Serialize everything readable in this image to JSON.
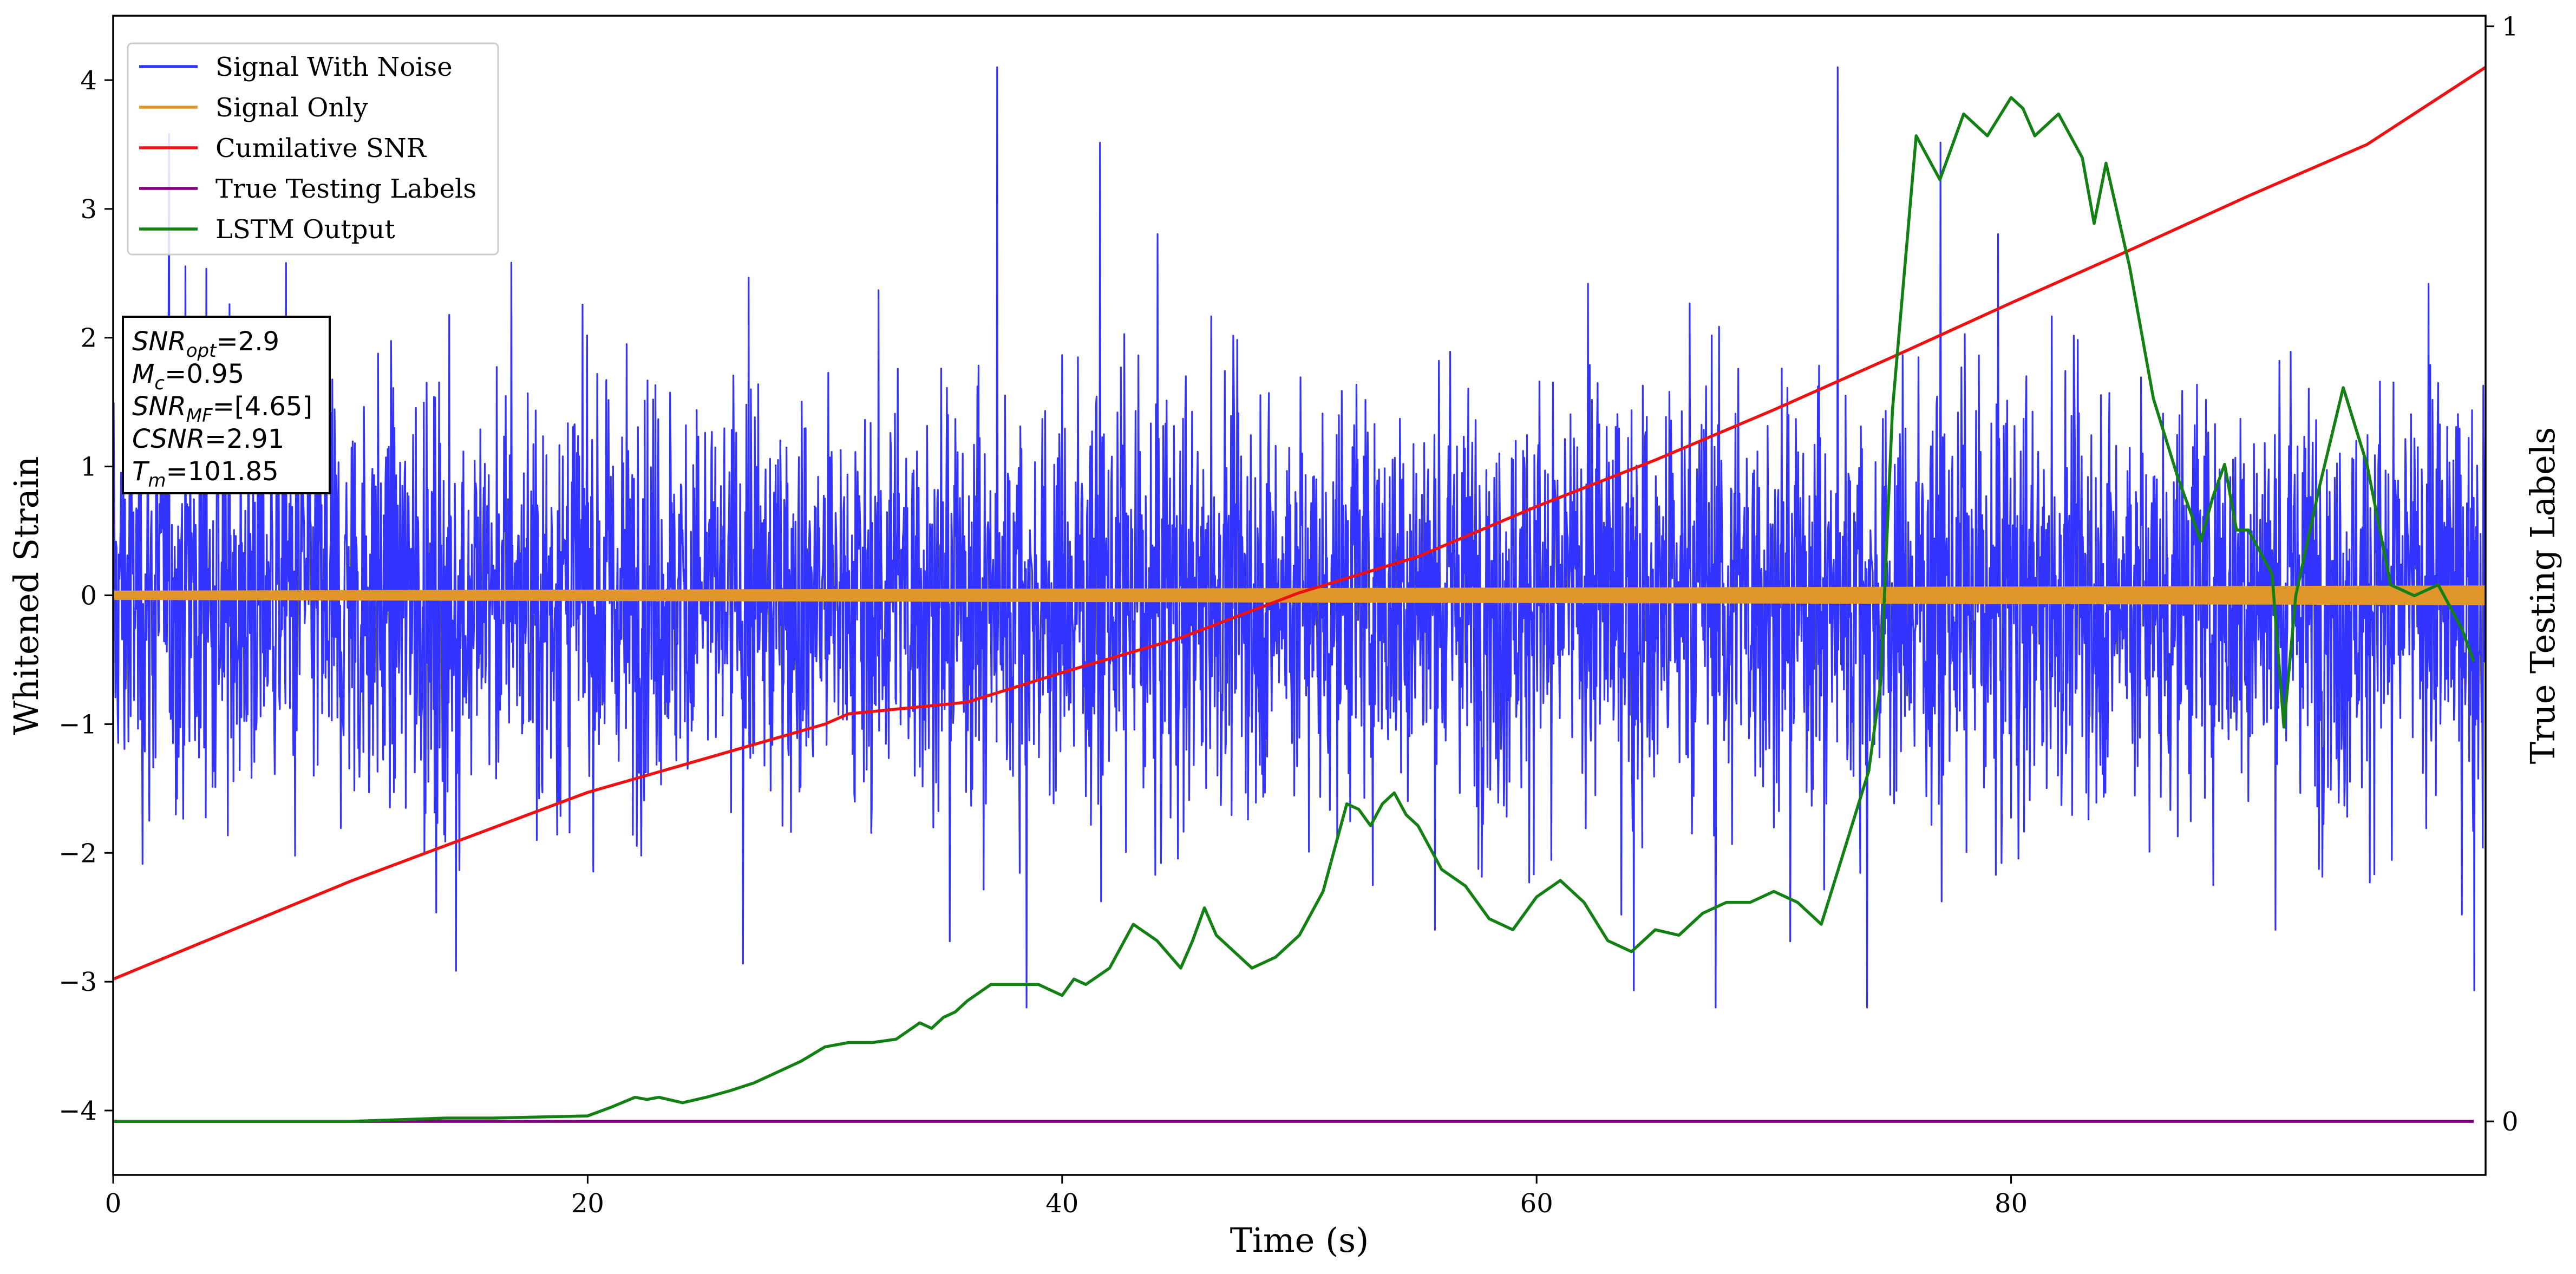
{
  "colors": {
    "noise": "#3333ff",
    "signal": "#e0962a",
    "csnr": "#ee1111",
    "labels": "#800080",
    "lstm": "#138013"
  },
  "chart_data": {
    "type": "line",
    "xlabel": "Time (s)",
    "ylabel": "Whitened Strain",
    "y2label": "True Testing Labels",
    "xlim": [
      0,
      100
    ],
    "ylim": [
      -4.5,
      4.5
    ],
    "y2lim": [
      -0.0489,
      1.0097
    ],
    "xticks": [
      0,
      20,
      40,
      60,
      80
    ],
    "xtick_labels": [
      "0",
      "20",
      "40",
      "60",
      "80"
    ],
    "yticks": [
      -4,
      -3,
      -2,
      -1,
      0,
      1,
      2,
      3,
      4
    ],
    "ytick_labels": [
      "−4",
      "−3",
      "−2",
      "−1",
      "0",
      "1",
      "2",
      "3",
      "4"
    ],
    "y2ticks": [
      0,
      1
    ],
    "y2tick_labels": [
      "0",
      "1"
    ],
    "grid": false,
    "legend_position": "top-left",
    "series": [
      {
        "name": "Signal With Noise",
        "axis": "y1",
        "style": "noise",
        "amplitude_range": [
          -3.2,
          4.1
        ]
      },
      {
        "name": "Signal Only",
        "axis": "y1",
        "style": "band",
        "amplitude": [
          0.03,
          0.07
        ]
      },
      {
        "name": "Cumilative SNR",
        "axis": "y1",
        "x": [
          0,
          10,
          20,
          30,
          31,
          36,
          40,
          45,
          50,
          55,
          60,
          65,
          70,
          75,
          80,
          85,
          90,
          95,
          100
        ],
        "y": [
          -2.98,
          -2.22,
          -1.53,
          -1.0,
          -0.92,
          -0.83,
          -0.6,
          -0.33,
          0.02,
          0.3,
          0.69,
          1.05,
          1.44,
          1.85,
          2.27,
          2.68,
          3.1,
          3.5,
          4.1
        ]
      },
      {
        "name": "True Testing Labels",
        "axis": "y2",
        "x": [
          0,
          99.5
        ],
        "y": [
          0,
          0
        ]
      },
      {
        "name": "LSTM Output",
        "axis": "y2",
        "x": [
          0,
          10,
          14,
          16,
          18,
          20,
          21,
          22,
          22.5,
          23,
          24,
          25,
          26,
          27,
          28,
          29,
          30,
          31,
          32,
          33,
          34,
          34.5,
          35,
          35.5,
          36,
          37,
          38,
          39,
          40,
          40.5,
          41,
          42,
          43,
          44,
          45,
          45.5,
          46,
          46.5,
          47,
          48,
          49,
          50,
          51,
          52,
          52.5,
          53,
          53.5,
          54,
          54.5,
          55,
          56,
          57,
          58,
          59,
          60,
          61,
          62,
          63,
          64,
          65,
          66,
          67,
          68,
          69,
          70,
          71,
          72,
          73,
          74,
          74.5,
          75,
          76,
          77,
          78,
          79,
          80,
          80.5,
          81,
          82,
          83,
          83.5,
          84,
          85,
          86,
          87,
          88,
          88.5,
          89,
          89.5,
          90,
          91,
          91.5,
          92,
          93,
          94,
          95,
          96,
          97,
          98,
          99,
          99.5
        ],
        "y": [
          0.0,
          0.0,
          0.003,
          0.003,
          0.004,
          0.005,
          0.013,
          0.022,
          0.02,
          0.022,
          0.017,
          0.022,
          0.028,
          0.035,
          0.045,
          0.055,
          0.068,
          0.072,
          0.072,
          0.075,
          0.09,
          0.085,
          0.095,
          0.1,
          0.11,
          0.125,
          0.125,
          0.125,
          0.115,
          0.13,
          0.125,
          0.14,
          0.18,
          0.165,
          0.14,
          0.165,
          0.195,
          0.17,
          0.16,
          0.14,
          0.15,
          0.17,
          0.21,
          0.29,
          0.285,
          0.27,
          0.29,
          0.3,
          0.28,
          0.27,
          0.23,
          0.215,
          0.185,
          0.175,
          0.205,
          0.22,
          0.2,
          0.165,
          0.155,
          0.175,
          0.17,
          0.19,
          0.2,
          0.2,
          0.21,
          0.2,
          0.18,
          0.25,
          0.32,
          0.4,
          0.65,
          0.9,
          0.86,
          0.92,
          0.9,
          0.935,
          0.925,
          0.9,
          0.92,
          0.88,
          0.82,
          0.875,
          0.78,
          0.66,
          0.59,
          0.53,
          0.57,
          0.6,
          0.54,
          0.54,
          0.5,
          0.36,
          0.48,
          0.58,
          0.67,
          0.6,
          0.49,
          0.48,
          0.49,
          0.45,
          0.42
        ]
      }
    ],
    "annotation": {
      "lines": [
        {
          "sym": "SNR",
          "sub": "opt",
          "rest": "=2.9"
        },
        {
          "sym": "M",
          "sub": "c",
          "rest": "=0.95"
        },
        {
          "sym": "SNR",
          "sub": "MF",
          "rest": "=[4.65]"
        },
        {
          "sym": "CSNR",
          "sub": "",
          "rest": "=2.91"
        },
        {
          "sym": "T",
          "sub": "m",
          "rest": "=101.85"
        }
      ]
    }
  }
}
